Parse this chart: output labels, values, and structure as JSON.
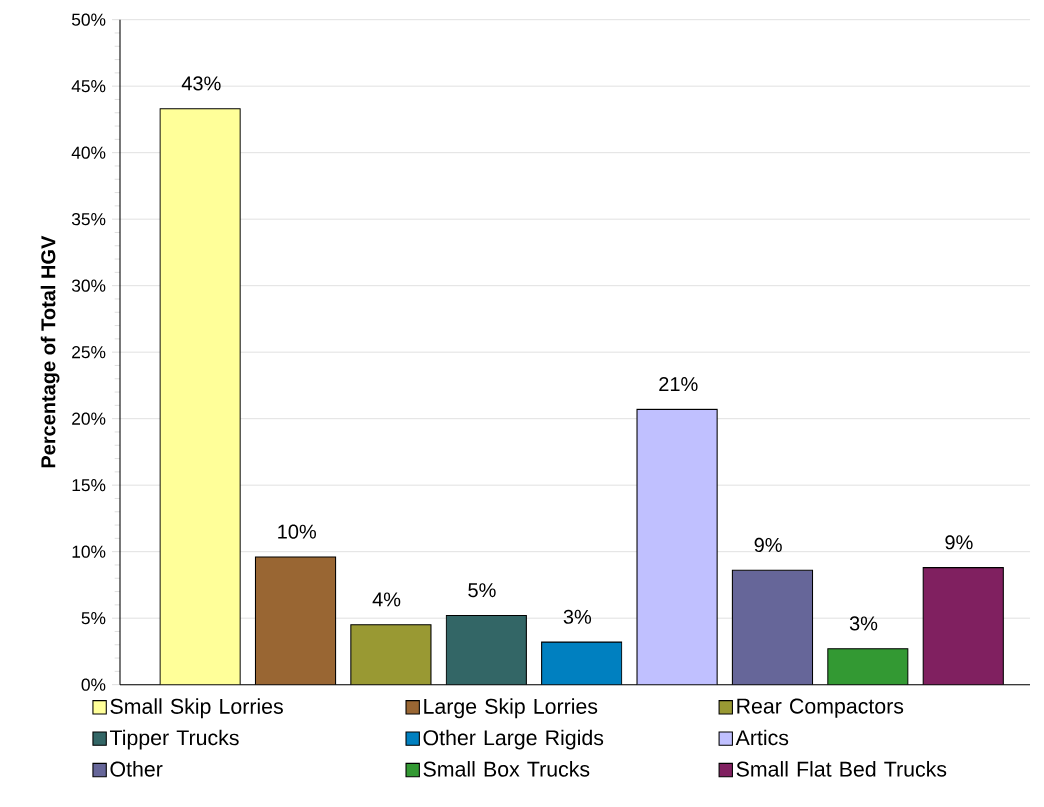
{
  "chart_data": {
    "type": "bar",
    "categories": [
      null
    ],
    "series": [
      {
        "name": "Small Skip Lorries",
        "color": "#ffff99",
        "values": [
          43.3
        ],
        "value_labels": [
          "43%"
        ]
      },
      {
        "name": "Large Skip Lorries",
        "color": "#996633",
        "values": [
          9.6
        ],
        "value_labels": [
          "10%"
        ]
      },
      {
        "name": "Rear Compactors",
        "color": "#999933",
        "values": [
          4.5
        ],
        "value_labels": [
          "4%"
        ]
      },
      {
        "name": "Tipper Trucks",
        "color": "#336666",
        "values": [
          5.2
        ],
        "value_labels": [
          "5%"
        ]
      },
      {
        "name": "Other Large Rigids",
        "color": "#0080c0",
        "values": [
          3.2
        ],
        "value_labels": [
          "3%"
        ]
      },
      {
        "name": "Artics",
        "color": "#c0c0ff",
        "values": [
          20.7
        ],
        "value_labels": [
          "21%"
        ]
      },
      {
        "name": "Other",
        "color": "#666699",
        "values": [
          8.6
        ],
        "value_labels": [
          "9%"
        ]
      },
      {
        "name": "Small Box Trucks",
        "color": "#339933",
        "values": [
          2.7
        ],
        "value_labels": [
          "3%"
        ]
      },
      {
        "name": "Small Flat Bed Trucks",
        "color": "#802060",
        "values": [
          8.8
        ],
        "value_labels": [
          "9%"
        ]
      }
    ],
    "ylabel": "Percentage of Total HGV",
    "ylim": [
      0,
      50
    ],
    "yticks": [
      {
        "value": 0,
        "label": "0%"
      },
      {
        "value": 5,
        "label": "5%"
      },
      {
        "value": 10,
        "label": "10%"
      },
      {
        "value": 15,
        "label": "15%"
      },
      {
        "value": 20,
        "label": "20%"
      },
      {
        "value": 25,
        "label": "25%"
      },
      {
        "value": 30,
        "label": "30%"
      },
      {
        "value": 35,
        "label": "35%"
      },
      {
        "value": 40,
        "label": "40%"
      },
      {
        "value": 45,
        "label": "45%"
      },
      {
        "value": 50,
        "label": "50%"
      }
    ],
    "grid": "y",
    "legend": "bottom",
    "tick_labels": "y"
  }
}
